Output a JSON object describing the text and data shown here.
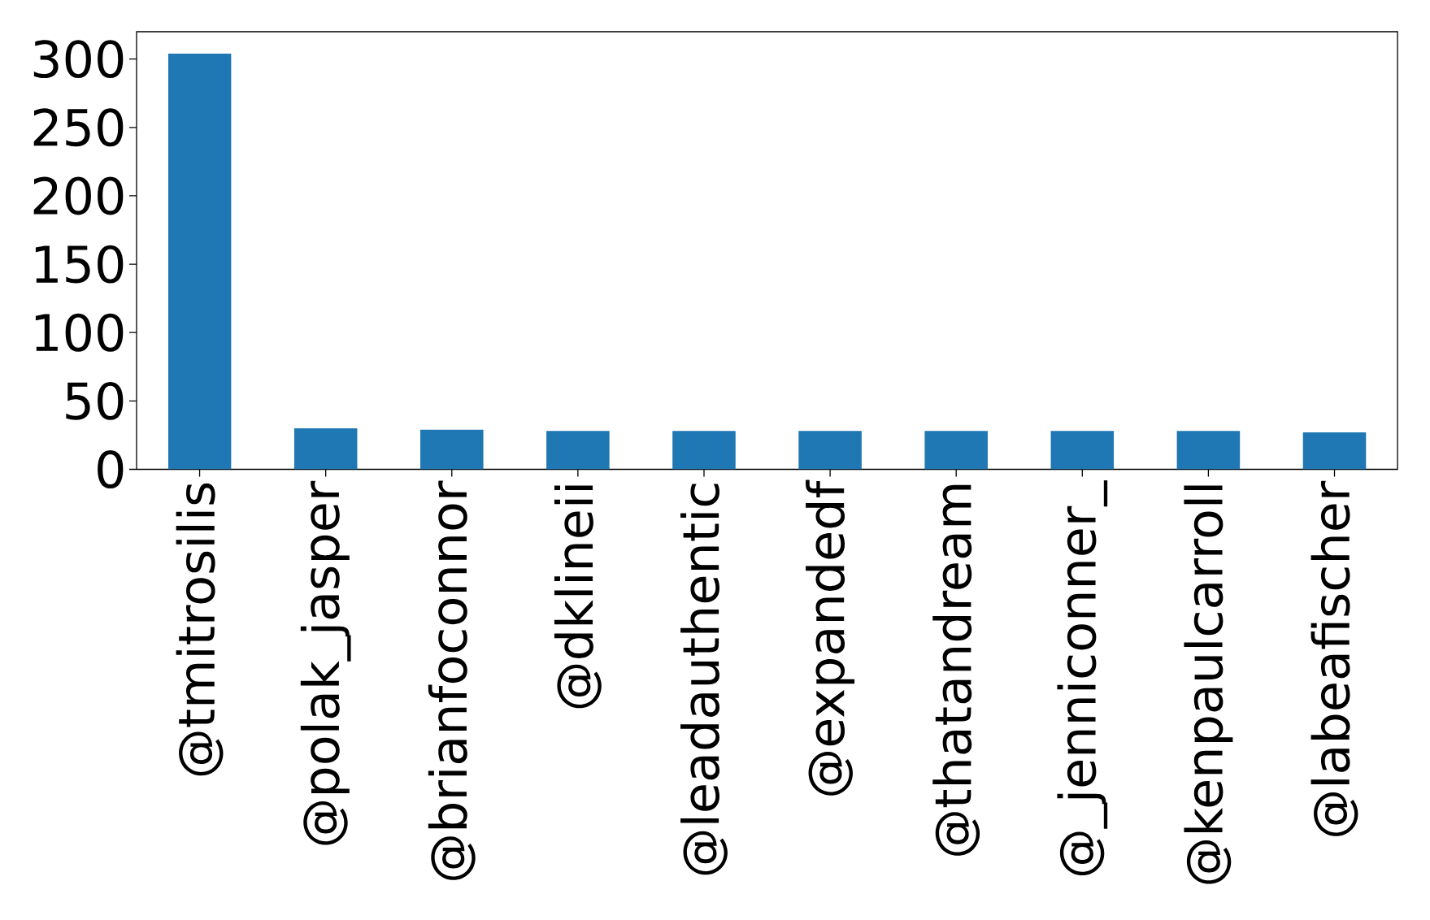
{
  "chart_data": {
    "type": "bar",
    "categories": [
      "@tmitrosilis",
      "@polak_jasper",
      "@brianfoconnor",
      "@dklineii",
      "@leadauthentic",
      "@expandedf",
      "@thatandream",
      "@_jenniconner_",
      "@kenpaulcarroll",
      "@labeafischer"
    ],
    "values": [
      304,
      30,
      29,
      28,
      28,
      28,
      28,
      28,
      28,
      27
    ],
    "color": "#1f77b4",
    "ylim": [
      0,
      320
    ],
    "yticks": [
      0,
      50,
      100,
      150,
      200,
      250,
      300
    ]
  }
}
